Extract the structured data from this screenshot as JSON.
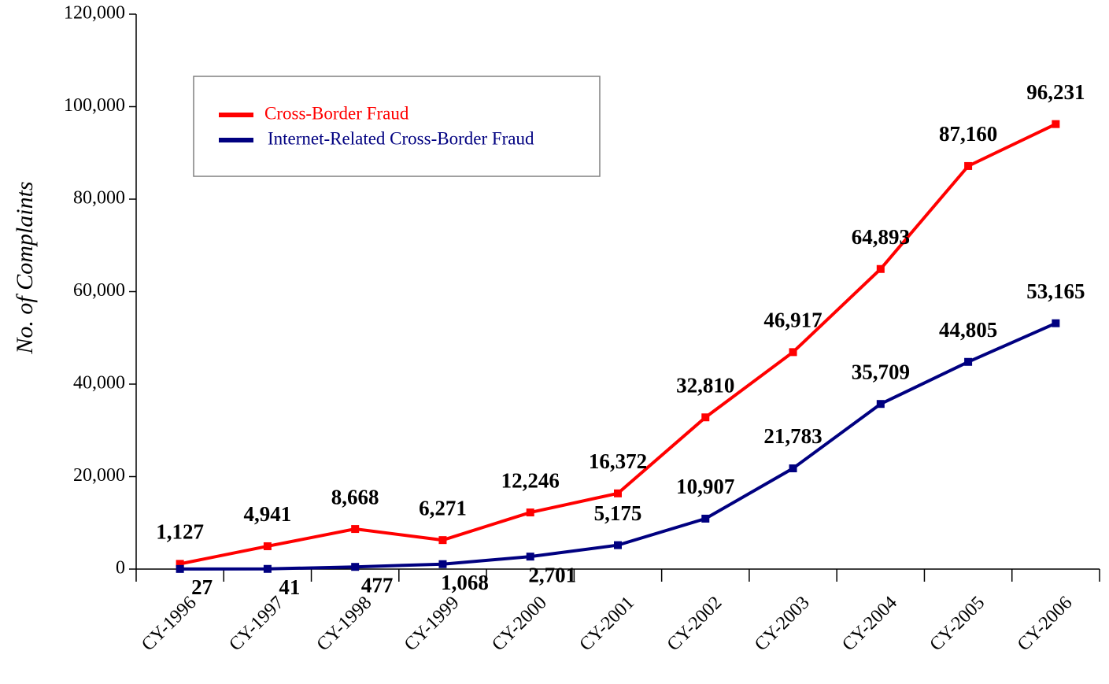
{
  "chart_data": {
    "type": "line",
    "y_label": "No. of Complaints",
    "categories": [
      "CY-1996",
      "CY-1997",
      "CY-1998",
      "CY-1999",
      "CY-2000",
      "CY-2001",
      "CY-2002",
      "CY-2003",
      "CY-2004",
      "CY-2005",
      "CY-2006"
    ],
    "series": [
      {
        "name": "Cross-Border Fraud",
        "color": "#ff0000",
        "values": [
          1127,
          4941,
          8668,
          6271,
          12246,
          16372,
          32810,
          46917,
          64893,
          87160,
          96231
        ],
        "value_labels": [
          "1,127",
          "4,941",
          "8,668",
          "6,271",
          "12,246",
          "16,372",
          "32,810",
          "46,917",
          "64,893",
          "87,160",
          "96,231"
        ]
      },
      {
        "name": "Internet-Related Cross-Border Fraud",
        "color": "#000080",
        "values": [
          27,
          41,
          477,
          1068,
          2701,
          5175,
          10907,
          21783,
          35709,
          44805,
          53165
        ],
        "value_labels": [
          "27",
          "41",
          "477",
          "1,068",
          "2,701",
          "5,175",
          "10,907",
          "21,783",
          "35,709",
          "44,805",
          "53,165"
        ]
      }
    ],
    "ylim": [
      0,
      120000
    ],
    "yticks": [
      0,
      {
        "value": 20000,
        "label": "20,000"
      },
      {
        "value": 40000,
        "label": "40,000"
      },
      {
        "value": 60000,
        "label": "60,000"
      },
      {
        "value": 80000,
        "label": "80,000"
      },
      {
        "value": 100000,
        "label": "100,000"
      },
      {
        "value": 120000,
        "label": "120,000"
      }
    ],
    "legend": "upper left",
    "grid": false
  }
}
